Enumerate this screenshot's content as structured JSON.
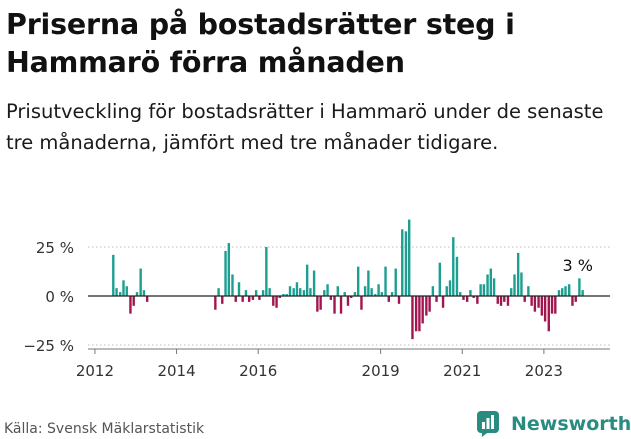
{
  "title": "Priserna på bostadsrätter steg i Hammarö förra månaden",
  "subtitle": "Prisutveckling för bostadsrätter i Hammarö under de senaste tre månaderna, jämfört med tre månader tidigare.",
  "source": "Källa: Svensk Mäklarstatistik",
  "brand": "Newsworthy",
  "colors": {
    "positive": "#1c9e91",
    "negative": "#a3154f",
    "brand": "#2a8b80"
  },
  "chart_data": {
    "type": "bar",
    "xlabel": "",
    "ylabel": "",
    "ylim": [
      -25,
      40
    ],
    "y_ticks": [
      {
        "value": 25,
        "label": "25 %"
      },
      {
        "value": 0,
        "label": "0 %"
      },
      {
        "value": -25,
        "label": "−25 %"
      }
    ],
    "x_ticks": [
      {
        "value": 2012,
        "label": "2012"
      },
      {
        "value": 2014,
        "label": "2014"
      },
      {
        "value": 2016,
        "label": "2016"
      },
      {
        "value": 2019,
        "label": "2019"
      },
      {
        "value": 2021,
        "label": "2021"
      },
      {
        "value": 2023,
        "label": "2023"
      }
    ],
    "annotation": {
      "x": 2023.83,
      "value": 3,
      "label": "3 %"
    },
    "series": [
      {
        "values": [
          [
            2012.45,
            21
          ],
          [
            2012.53,
            4
          ],
          [
            2012.62,
            2
          ],
          [
            2012.7,
            8
          ],
          [
            2012.78,
            5
          ],
          [
            2012.87,
            -9
          ],
          [
            2012.95,
            -5
          ],
          [
            2013.03,
            2
          ],
          [
            2013.12,
            14
          ],
          [
            2013.2,
            3
          ],
          [
            2013.28,
            -3
          ],
          [
            2014.95,
            -7
          ],
          [
            2015.03,
            4
          ],
          [
            2015.12,
            -4
          ],
          [
            2015.2,
            23
          ],
          [
            2015.28,
            27
          ],
          [
            2015.37,
            11
          ],
          [
            2015.45,
            -3
          ],
          [
            2015.53,
            7
          ],
          [
            2015.62,
            -3
          ],
          [
            2015.7,
            3
          ],
          [
            2015.78,
            -3
          ],
          [
            2015.87,
            -2
          ],
          [
            2015.95,
            3
          ],
          [
            2016.03,
            -2
          ],
          [
            2016.12,
            3
          ],
          [
            2016.2,
            25
          ],
          [
            2016.28,
            4
          ],
          [
            2016.37,
            -5
          ],
          [
            2016.45,
            -6
          ],
          [
            2016.53,
            -1
          ],
          [
            2016.62,
            1
          ],
          [
            2016.7,
            1
          ],
          [
            2016.78,
            5
          ],
          [
            2016.87,
            4
          ],
          [
            2016.95,
            7
          ],
          [
            2017.03,
            4
          ],
          [
            2017.12,
            3
          ],
          [
            2017.2,
            16
          ],
          [
            2017.28,
            4
          ],
          [
            2017.37,
            13
          ],
          [
            2017.45,
            -8
          ],
          [
            2017.53,
            -7
          ],
          [
            2017.62,
            3
          ],
          [
            2017.7,
            6
          ],
          [
            2017.78,
            -2
          ],
          [
            2017.87,
            -9
          ],
          [
            2017.95,
            5
          ],
          [
            2018.03,
            -9
          ],
          [
            2018.12,
            2
          ],
          [
            2018.2,
            -5
          ],
          [
            2018.28,
            -1
          ],
          [
            2018.37,
            2
          ],
          [
            2018.45,
            15
          ],
          [
            2018.53,
            -7
          ],
          [
            2018.62,
            5
          ],
          [
            2018.7,
            13
          ],
          [
            2018.78,
            4
          ],
          [
            2018.87,
            1
          ],
          [
            2018.95,
            6
          ],
          [
            2019.03,
            2
          ],
          [
            2019.12,
            15
          ],
          [
            2019.2,
            -3
          ],
          [
            2019.28,
            2
          ],
          [
            2019.37,
            14
          ],
          [
            2019.45,
            -4
          ],
          [
            2019.53,
            34
          ],
          [
            2019.62,
            33
          ],
          [
            2019.7,
            39
          ],
          [
            2019.78,
            -22
          ],
          [
            2019.87,
            -18
          ],
          [
            2019.95,
            -18
          ],
          [
            2020.03,
            -14
          ],
          [
            2020.12,
            -10
          ],
          [
            2020.2,
            -8
          ],
          [
            2020.28,
            5
          ],
          [
            2020.37,
            -3
          ],
          [
            2020.45,
            17
          ],
          [
            2020.53,
            -6
          ],
          [
            2020.62,
            5
          ],
          [
            2020.7,
            8
          ],
          [
            2020.78,
            30
          ],
          [
            2020.87,
            20
          ],
          [
            2020.95,
            2
          ],
          [
            2021.03,
            -2
          ],
          [
            2021.12,
            -3
          ],
          [
            2021.2,
            3
          ],
          [
            2021.28,
            -1
          ],
          [
            2021.37,
            -4
          ],
          [
            2021.45,
            6
          ],
          [
            2021.53,
            6
          ],
          [
            2021.62,
            11
          ],
          [
            2021.7,
            14
          ],
          [
            2021.78,
            9
          ],
          [
            2021.87,
            -4
          ],
          [
            2021.95,
            -5
          ],
          [
            2022.03,
            -3
          ],
          [
            2022.12,
            -5
          ],
          [
            2022.2,
            4
          ],
          [
            2022.28,
            11
          ],
          [
            2022.37,
            22
          ],
          [
            2022.45,
            12
          ],
          [
            2022.53,
            -3
          ],
          [
            2022.62,
            5
          ],
          [
            2022.7,
            -5
          ],
          [
            2022.78,
            -8
          ],
          [
            2022.87,
            -6
          ],
          [
            2022.95,
            -10
          ],
          [
            2023.03,
            -13
          ],
          [
            2023.12,
            -18
          ],
          [
            2023.2,
            -9
          ],
          [
            2023.28,
            -9
          ],
          [
            2023.37,
            3
          ],
          [
            2023.45,
            4
          ],
          [
            2023.53,
            5
          ],
          [
            2023.62,
            6
          ],
          [
            2023.7,
            -5
          ],
          [
            2023.78,
            -3
          ],
          [
            2023.87,
            9
          ],
          [
            2023.95,
            3
          ]
        ]
      }
    ]
  }
}
